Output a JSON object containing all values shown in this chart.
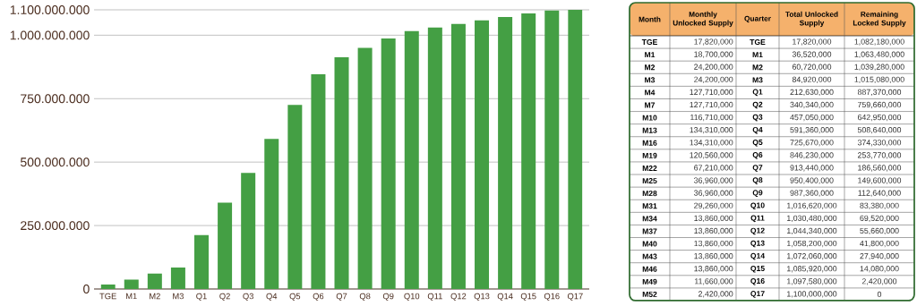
{
  "chart_data": [
    {
      "type": "bar",
      "categories": [
        "TGE",
        "M1",
        "M2",
        "M3",
        "Q1",
        "Q2",
        "Q3",
        "Q4",
        "Q5",
        "Q6",
        "Q7",
        "Q8",
        "Q9",
        "Q10",
        "Q11",
        "Q12",
        "Q13",
        "Q14",
        "Q15",
        "Q16",
        "Q17"
      ],
      "values": [
        17820000,
        36520000,
        60720000,
        84920000,
        212630000,
        340340000,
        457050000,
        591360000,
        725670000,
        846230000,
        913440000,
        950400000,
        987360000,
        1016620000,
        1030480000,
        1044340000,
        1058200000,
        1072060000,
        1085920000,
        1097580000,
        1100000000
      ],
      "color": "#449f44",
      "ylim": [
        0,
        1100000000
      ],
      "yticks": [
        0,
        {
          "value": 250000000,
          "label": "250.000.000"
        },
        {
          "value": 500000000,
          "label": "500.000.000"
        },
        {
          "value": 750000000,
          "label": "750.000.000"
        },
        {
          "value": 1000000000,
          "label": "1.000.000.000"
        },
        {
          "value": 1100000000,
          "label": "1.100.000.000"
        }
      ],
      "grid": "y"
    },
    {
      "type": "other",
      "ylabel": "Month",
      "y2label": "Quarter",
      "categories": [
        "TGE",
        "M1",
        "M2",
        "M3",
        "M4",
        "M7",
        "M10",
        "M13",
        "M16",
        "M19",
        "M22",
        "M25",
        "M28",
        "M31",
        "M34",
        "M37",
        "M40",
        "M43",
        "M46",
        "M49",
        "M52"
      ],
      "y2_categories": [
        "TGE",
        "M1",
        "M2",
        "M3",
        "Q1",
        "Q2",
        "Q3",
        "Q4",
        "Q5",
        "Q6",
        "Q7",
        "Q8",
        "Q9",
        "Q10",
        "Q11",
        "Q12",
        "Q13",
        "Q14",
        "Q15",
        "Q16",
        "Q17"
      ],
      "annotations": [
        "Monthly Unlocked Supply",
        "17,820,000",
        "18,700,000",
        "24,200,000",
        "24,200,000",
        "127,710,000",
        "127,710,000",
        "116,710,000",
        "134,310,000",
        "134,310,000",
        "120,560,000",
        "67,210,000",
        "36,960,000",
        "36,960,000",
        "29,260,000",
        "13,860,000",
        "13,860,000",
        "13,860,000",
        "13,860,000",
        "13,860,000",
        "11,660,000",
        "2,420,000",
        "Total Unlocked Supply",
        "17,820,000",
        "36,520,000",
        "60,720,000",
        "84,920,000",
        "212,630,000",
        "340,340,000",
        "457,050,000",
        "591,360,000",
        "725,670,000",
        "846,230,000",
        "913,440,000",
        "950,400,000",
        "987,360,000",
        "1,016,620,000",
        "1,030,480,000",
        "1,044,340,000",
        "1,058,200,000",
        "1,072,060,000",
        "1,085,920,000",
        "1,097,580,000",
        "1,100,000,000",
        "Remaining Locked Supply",
        "1,082,180,000",
        "1,063,480,000",
        "1,039,280,000",
        "1,015,080,000",
        "887,370,000",
        "759,660,000",
        "642,950,000",
        "508,640,000",
        "374,330,000",
        "253,770,000",
        "186,560,000",
        "149,600,000",
        "112,640,000",
        "83,380,000",
        "69,520,000",
        "55,660,000",
        "41,800,000",
        "27,940,000",
        "14,080,000",
        "2,420,000",
        "0"
      ]
    }
  ]
}
